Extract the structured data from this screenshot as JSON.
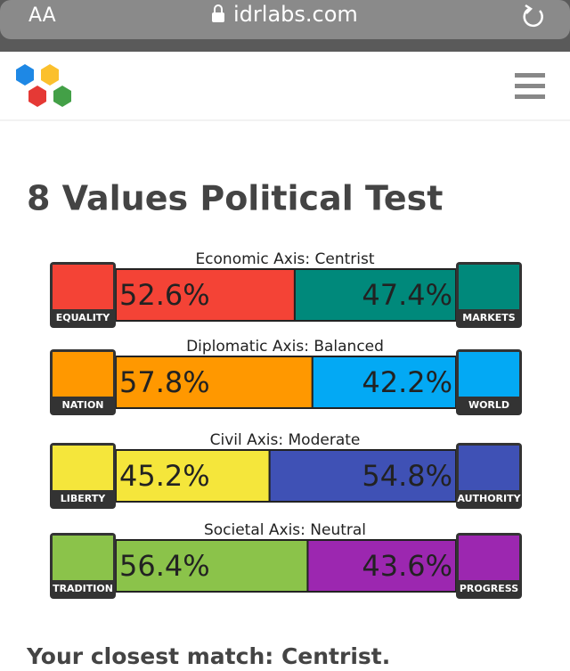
{
  "browser": {
    "text_size": "AA",
    "url": "idrlabs.com"
  },
  "page": {
    "title": "8 Values Political Test",
    "footer": "Your closest match: Centrist."
  },
  "axes": [
    {
      "title": "Economic Axis: Centrist",
      "left_label": "EQUALITY",
      "right_label": "MARKETS",
      "values": [
        52.6,
        47.4
      ],
      "value_labels": [
        "52.6%",
        "47.4%"
      ],
      "colors": [
        "#f44336",
        "#00897b"
      ]
    },
    {
      "title": "Diplomatic Axis: Balanced",
      "left_label": "NATION",
      "right_label": "WORLD",
      "values": [
        57.8,
        42.2
      ],
      "value_labels": [
        "57.8%",
        "42.2%"
      ],
      "colors": [
        "#ff9800",
        "#03a9f4"
      ]
    },
    {
      "title": "Civil Axis: Moderate",
      "left_label": "LIBERTY",
      "right_label": "AUTHORITY",
      "values": [
        45.2,
        54.8
      ],
      "value_labels": [
        "45.2%",
        "54.8%"
      ],
      "colors": [
        "#f5e63b",
        "#3f51b5"
      ]
    },
    {
      "title": "Societal Axis: Neutral",
      "left_label": "TRADITION",
      "right_label": "PROGRESS",
      "values": [
        56.4,
        43.6
      ],
      "value_labels": [
        "56.4%",
        "43.6%"
      ],
      "colors": [
        "#8bc34a",
        "#9c27b0"
      ]
    }
  ]
}
